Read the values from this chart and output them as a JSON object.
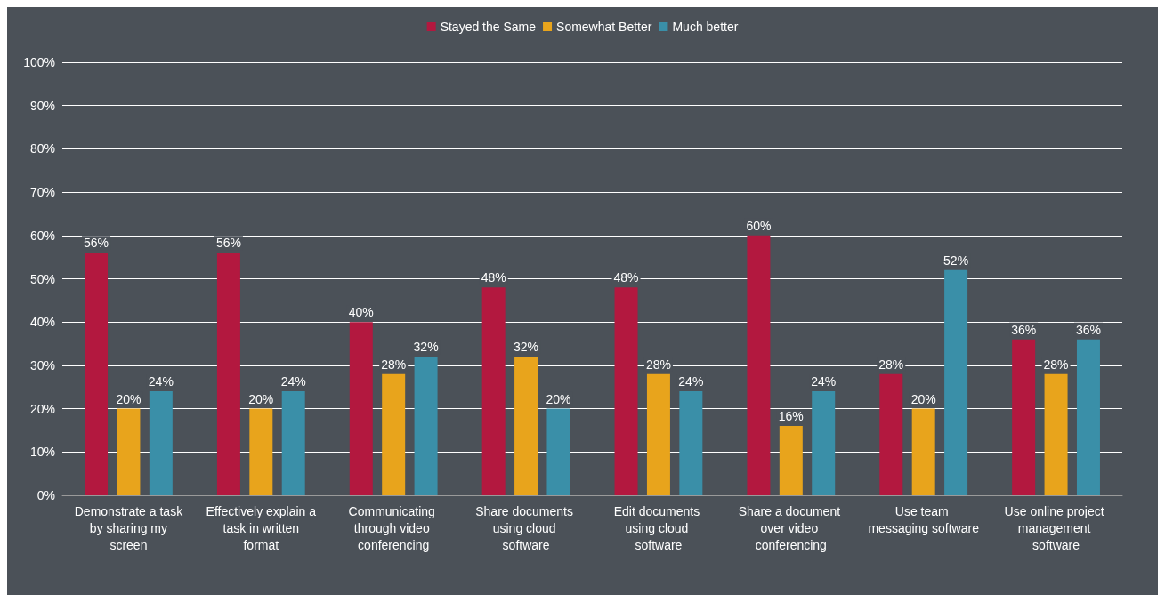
{
  "chart_data": {
    "type": "bar",
    "categories": [
      "Demonstrate a task by sharing my screen",
      "Effectively explain a task in written format",
      "Communicating through video conferencing",
      "Share documents using cloud software",
      "Edit documents using cloud software",
      "Share a document over video conferencing",
      "Use team messaging software",
      "Use online project management software"
    ],
    "series": [
      {
        "name": "Stayed the Same",
        "color": "#b3183f",
        "values": [
          56,
          56,
          40,
          48,
          48,
          60,
          28,
          36
        ],
        "value_labels": [
          "56%",
          "56%",
          "40%",
          "48%",
          "48%",
          "60%",
          "28%",
          "36%"
        ]
      },
      {
        "name": "Somewhat Better",
        "color": "#e8a41c",
        "values": [
          20,
          20,
          28,
          32,
          28,
          16,
          20,
          28
        ],
        "value_labels": [
          "20%",
          "20%",
          "28%",
          "32%",
          "28%",
          "16%",
          "20%",
          "28%"
        ]
      },
      {
        "name": "Much better",
        "color": "#3a8fa8",
        "values": [
          24,
          24,
          32,
          20,
          24,
          24,
          52,
          36
        ],
        "value_labels": [
          "24%",
          "24%",
          "32%",
          "20%",
          "24%",
          "24%",
          "52%",
          "36%"
        ]
      }
    ],
    "ylim": [
      0,
      100
    ],
    "yticks": [
      {
        "value": 0,
        "label": "0%"
      },
      {
        "value": 10,
        "label": "10%"
      },
      {
        "value": 20,
        "label": "20%"
      },
      {
        "value": 30,
        "label": "30%"
      },
      {
        "value": 40,
        "label": "40%"
      },
      {
        "value": 50,
        "label": "50%"
      },
      {
        "value": 60,
        "label": "60%"
      },
      {
        "value": 70,
        "label": "70%"
      },
      {
        "value": 80,
        "label": "80%"
      },
      {
        "value": 90,
        "label": "90%"
      },
      {
        "value": 100,
        "label": "100%"
      }
    ],
    "grid": "y",
    "legend": "top"
  }
}
